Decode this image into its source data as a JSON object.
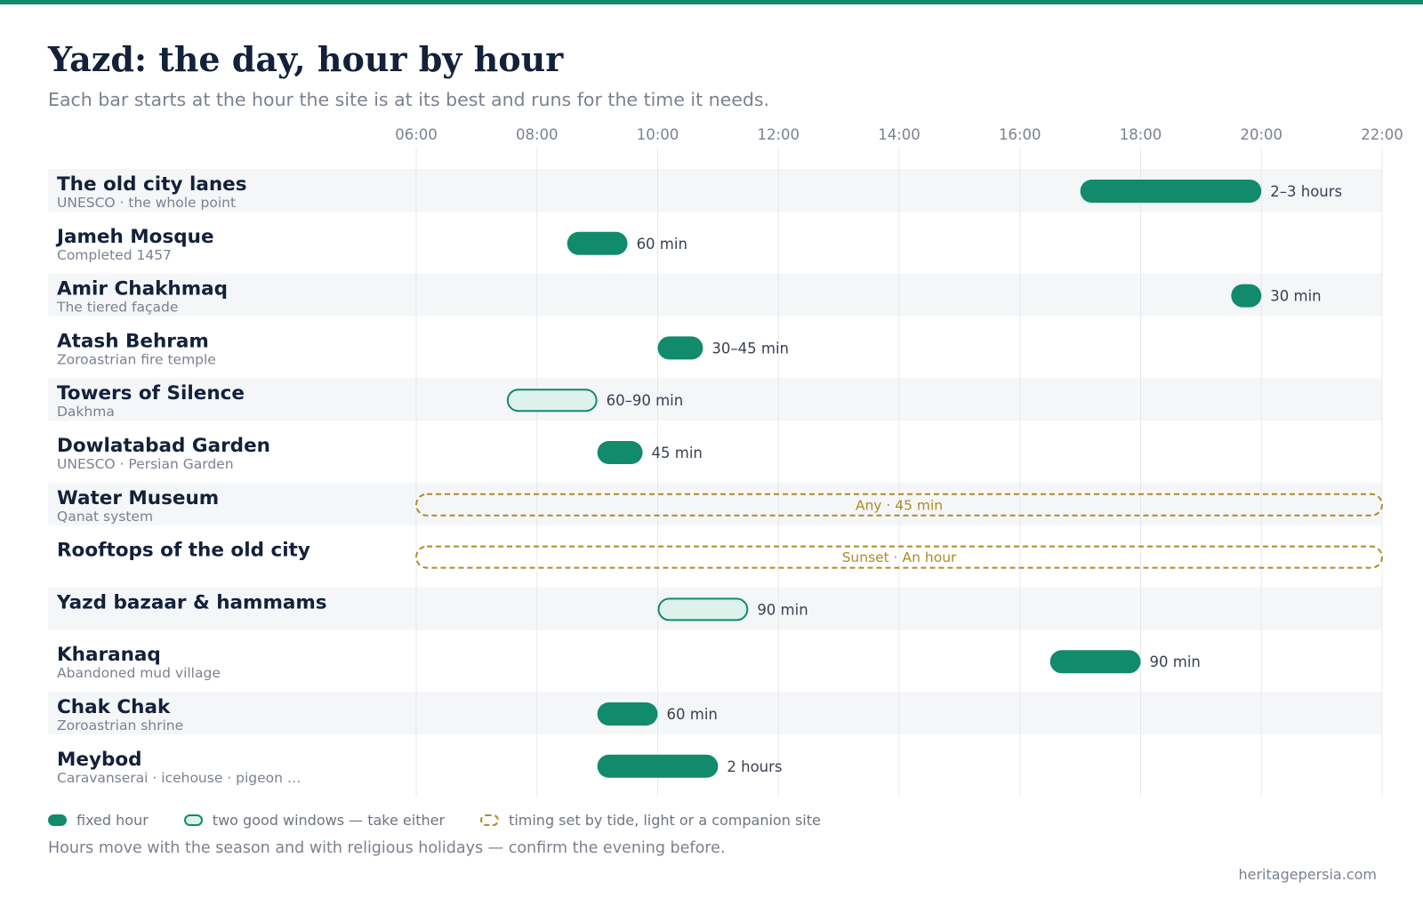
{
  "colors": {
    "accent": "#128a6c",
    "accent_light": "#dcf2ea",
    "dashed": "#b08a26",
    "row_alt": "#f4f6f8",
    "title": "#13213a",
    "muted": "#7b8190",
    "grid": "#e6e8ec"
  },
  "chart_data": {
    "type": "timeline",
    "title": "Yazd: the day, hour by hour",
    "subtitle": "Each bar starts at the hour the site is at its best and runs for the time it needs.",
    "x_axis": {
      "unit": "hour of day",
      "range": [
        6,
        22
      ],
      "ticks": [
        "06:00",
        "08:00",
        "10:00",
        "12:00",
        "14:00",
        "16:00",
        "18:00",
        "20:00",
        "22:00"
      ],
      "grid": true
    },
    "rows": [
      {
        "name": "The old city lanes",
        "sub": "UNESCO · the whole point",
        "kind": "fixed",
        "start": 17.0,
        "end": 20.0,
        "label": "2–3 hours"
      },
      {
        "name": "Jameh Mosque",
        "sub": "Completed 1457",
        "kind": "fixed",
        "start": 8.5,
        "end": 9.5,
        "label": "60 min"
      },
      {
        "name": "Amir Chakhmaq",
        "sub": "The tiered façade",
        "kind": "fixed",
        "start": 19.5,
        "end": 20.0,
        "label": "30 min"
      },
      {
        "name": "Atash Behram",
        "sub": "Zoroastrian fire temple",
        "kind": "fixed",
        "start": 10.0,
        "end": 10.75,
        "label": "30–45 min"
      },
      {
        "name": "Towers of Silence",
        "sub": "Dakhma",
        "kind": "two-windows",
        "start": 7.5,
        "end": 9.0,
        "label": "60–90 min"
      },
      {
        "name": "Dowlatabad Garden",
        "sub": "UNESCO · Persian Garden",
        "kind": "fixed",
        "start": 9.0,
        "end": 9.75,
        "label": "45 min"
      },
      {
        "name": "Water Museum",
        "sub": "Qanat system",
        "kind": "set-by-other",
        "start": 6.0,
        "end": 22.0,
        "label": "Any · 45 min"
      },
      {
        "name": "Rooftops of the old city",
        "sub": "",
        "kind": "set-by-other",
        "start": 6.0,
        "end": 22.0,
        "label": "Sunset · An hour"
      },
      {
        "name": "Yazd bazaar & hammams",
        "sub": "",
        "kind": "two-windows",
        "start": 10.0,
        "end": 11.5,
        "label": "90 min"
      },
      {
        "name": "Kharanaq",
        "sub": "Abandoned mud village",
        "kind": "fixed",
        "start": 16.5,
        "end": 18.0,
        "label": "90 min"
      },
      {
        "name": "Chak Chak",
        "sub": "Zoroastrian shrine",
        "kind": "fixed",
        "start": 9.0,
        "end": 10.0,
        "label": "60 min"
      },
      {
        "name": "Meybod",
        "sub": "Caravanserai · icehouse · pigeon …",
        "kind": "fixed",
        "start": 9.0,
        "end": 11.0,
        "label": "2 hours"
      }
    ],
    "legend": {
      "placement": "bottom-left",
      "items": [
        {
          "kind": "fixed",
          "label": "fixed hour"
        },
        {
          "kind": "two-windows",
          "label": "two good windows — take either"
        },
        {
          "kind": "set-by-other",
          "label": "timing set by tide, light or a companion site"
        }
      ]
    }
  },
  "footer": {
    "note": "Hours move with the season and with religious holidays — confirm the evening before.",
    "source": "heritagepersia.com"
  }
}
